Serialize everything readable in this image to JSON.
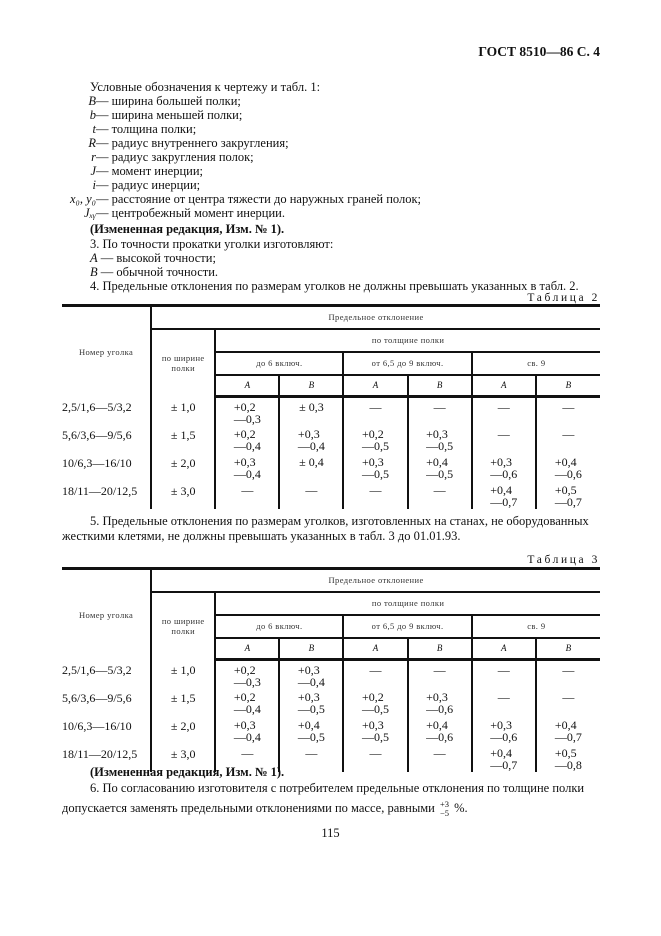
{
  "header": "ГОСТ 8510—86 С. 4",
  "legend_intro": "Условные обозначения к чертежу и табл. 1:",
  "legend": [
    {
      "sym": "B",
      "text": " — ширина большей полки;"
    },
    {
      "sym": "b",
      "text": " — ширина меньшей полки;"
    },
    {
      "sym": "t",
      "text": " — толщина полки;"
    },
    {
      "sym": "R",
      "text": " — радиус внутреннего закругления;"
    },
    {
      "sym": "r",
      "text": " — радиус закругления полок;"
    },
    {
      "sym": "J",
      "text": " — момент инерции;"
    },
    {
      "sym": "i",
      "text": " — радиус инерции;"
    },
    {
      "sym": "x₀, y₀",
      "text": " — расстояние от центра тяжести до наружных граней полок;"
    },
    {
      "sym": "Jₓᵧ",
      "text": " — центробежный момент инерции."
    }
  ],
  "amendment": "(Измененная редакция, Изм. № 1).",
  "p3": "3. По точности прокатки уголки изготовляют:",
  "p3_items": [
    {
      "sym": "A",
      "text": " — высокой точности;"
    },
    {
      "sym": "B",
      "text": " — обычной точности."
    }
  ],
  "p4": "4. Предельные отклонения по размерам уголков не должны превышать указанных в табл. 2.",
  "table_headers": {
    "number": "Номер уголка",
    "deviation": "Предельное отклонение",
    "width": "по ширине полки",
    "thickness": "по толщине полки",
    "ranges": [
      "до 6 включ.",
      "от 6,5 до 9 включ.",
      "св. 9"
    ],
    "classes": [
      "A",
      "B",
      "A",
      "B",
      "A",
      "B"
    ]
  },
  "table2": {
    "caption": "Таблица 2",
    "rows": [
      {
        "num": "2,5/1,6—5/3,2",
        "width": "± 1,0",
        "cells": [
          [
            "+0,2",
            "—0,3"
          ],
          [
            "± 0,3"
          ],
          [
            "—"
          ],
          [
            "—"
          ],
          [
            "—"
          ],
          [
            "—"
          ]
        ]
      },
      {
        "num": "5,6/3,6—9/5,6",
        "width": "± 1,5",
        "cells": [
          [
            "+0,2",
            "—0,4"
          ],
          [
            "+0,3",
            "—0,4"
          ],
          [
            "+0,2",
            "—0,5"
          ],
          [
            "+0,3",
            "—0,5"
          ],
          [
            "—"
          ],
          [
            "—"
          ]
        ]
      },
      {
        "num": "10/6,3—16/10",
        "width": "± 2,0",
        "cells": [
          [
            "+0,3",
            "—0,4"
          ],
          [
            "± 0,4"
          ],
          [
            "+0,3",
            "—0,5"
          ],
          [
            "+0,4",
            "—0,5"
          ],
          [
            "+0,3",
            "—0,6"
          ],
          [
            "+0,4",
            "—0,6"
          ]
        ]
      },
      {
        "num": "18/11—20/12,5",
        "width": "± 3,0",
        "cells": [
          [
            "—"
          ],
          [
            "—"
          ],
          [
            "—"
          ],
          [
            "—"
          ],
          [
            "+0,4",
            "—0,7"
          ],
          [
            "+0,5",
            "—0,7"
          ]
        ]
      }
    ]
  },
  "p5_line1": "5. Предельные отклонения по размерам уголков, изготовленных на станах, не оборудованных",
  "p5_line2": "жесткими клетями, не должны превышать указанных в табл. 3 до 01.01.93.",
  "table3": {
    "caption": "Таблица 3",
    "rows": [
      {
        "num": "2,5/1,6—5/3,2",
        "width": "± 1,0",
        "cells": [
          [
            "+0,2",
            "—0,3"
          ],
          [
            "+0,3",
            "—0,4"
          ],
          [
            "—"
          ],
          [
            "—"
          ],
          [
            "—"
          ],
          [
            "—"
          ]
        ]
      },
      {
        "num": "5,6/3,6—9/5,6",
        "width": "± 1,5",
        "cells": [
          [
            "+0,2",
            "—0,4"
          ],
          [
            "+0,3",
            "—0,5"
          ],
          [
            "+0,2",
            "—0,5"
          ],
          [
            "+0,3",
            "—0,6"
          ],
          [
            "—"
          ],
          [
            "—"
          ]
        ]
      },
      {
        "num": "10/6,3—16/10",
        "width": "± 2,0",
        "cells": [
          [
            "+0,3",
            "—0,4"
          ],
          [
            "+0,4",
            "—0,5"
          ],
          [
            "+0,3",
            "—0,5"
          ],
          [
            "+0,4",
            "—0,6"
          ],
          [
            "+0,3",
            "—0,6"
          ],
          [
            "+0,4",
            "—0,7"
          ]
        ]
      },
      {
        "num": "18/11—20/12,5",
        "width": "± 3,0",
        "cells": [
          [
            "—"
          ],
          [
            "—"
          ],
          [
            "—"
          ],
          [
            "—"
          ],
          [
            "+0,4",
            "—0,7"
          ],
          [
            "+0,5",
            "—0,8"
          ]
        ]
      }
    ]
  },
  "amendment2": "(Измененная редакция, Изм. № 1).",
  "p6_line1": "6. По согласованию изготовителя с потребителем предельные отклонения по толщине полки",
  "p6_line2": "допускается заменять предельными отклонениями по массе, равными",
  "p6_tol_upper": "+3",
  "p6_tol_lower": "−5",
  "p6_unit": " %.",
  "page_number": "115"
}
